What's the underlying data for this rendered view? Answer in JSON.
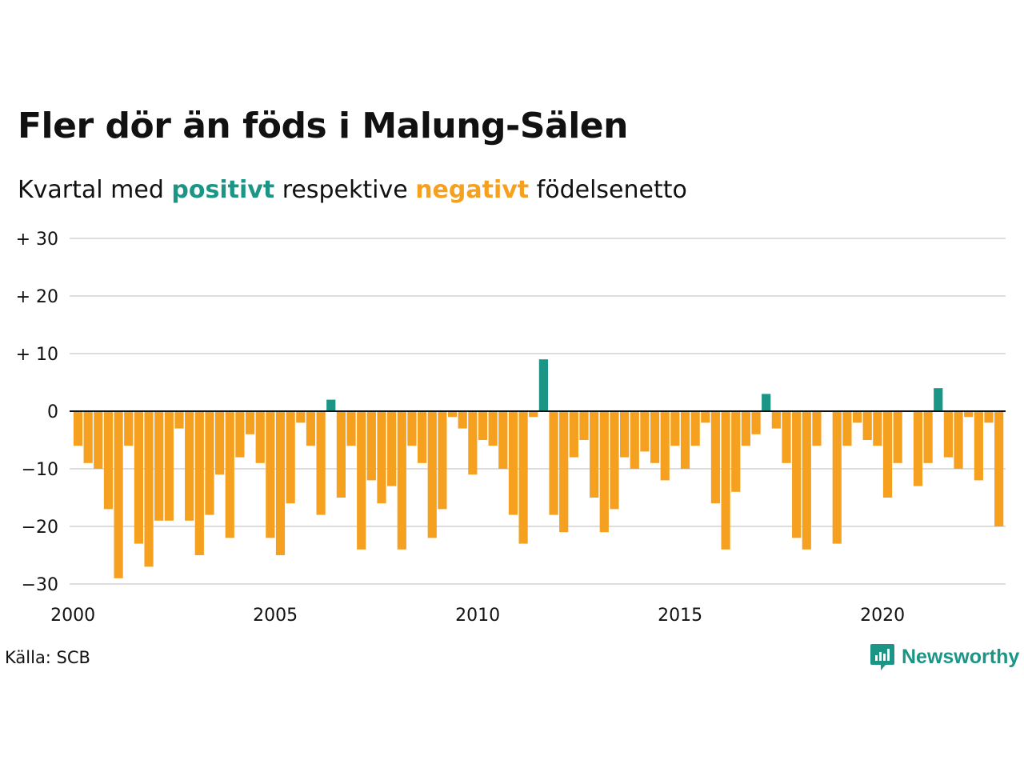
{
  "title": "Fler dör än föds i Malung-Sälen",
  "subtitle": {
    "prefix": "Kvartal med ",
    "positive_word": "positivt",
    "middle": " respektive ",
    "negative_word": "negativt",
    "suffix": " födelsenetto"
  },
  "source": "Källa: SCB",
  "logo": {
    "text": "Newsworthy",
    "icon": "newsworthy-logo-icon"
  },
  "colors": {
    "positive": "#1a9586",
    "negative": "#f5a01f",
    "grid": "#dddddd"
  },
  "chart_data": {
    "type": "bar",
    "x_start": "2000 Q1",
    "x_ticks": [
      "2000",
      "2005",
      "2010",
      "2015",
      "2020"
    ],
    "ylim": [
      -30,
      30
    ],
    "y_ticks": [
      {
        "value": 30,
        "label": "+ 30"
      },
      {
        "value": 20,
        "label": "+ 20"
      },
      {
        "value": 10,
        "label": "+ 10"
      },
      {
        "value": 0,
        "label": "0"
      },
      {
        "value": -10,
        "label": "−10"
      },
      {
        "value": -20,
        "label": "−20"
      },
      {
        "value": -30,
        "label": "−30"
      }
    ],
    "grid": true,
    "values": [
      -6,
      -9,
      -10,
      -17,
      -29,
      -6,
      -23,
      -27,
      -19,
      -19,
      -3,
      -19,
      -25,
      -18,
      -11,
      -22,
      -8,
      -4,
      -9,
      -22,
      -25,
      -16,
      -2,
      -6,
      -18,
      2,
      -15,
      -6,
      -24,
      -12,
      -16,
      -13,
      -24,
      -6,
      -9,
      -22,
      -17,
      -1,
      -3,
      -11,
      -5,
      -6,
      -10,
      -18,
      -23,
      -1,
      9,
      -18,
      -21,
      -8,
      -5,
      -15,
      -21,
      -17,
      -8,
      -10,
      -7,
      -9,
      -12,
      -6,
      -10,
      -6,
      -2,
      -16,
      -24,
      -14,
      -6,
      -4,
      3,
      -3,
      -9,
      -22,
      -24,
      -6,
      0,
      -23,
      -6,
      -2,
      -5,
      -6,
      -15,
      -9,
      0,
      -13,
      -9,
      4,
      -8,
      -10,
      -1,
      -12,
      -2,
      -20
    ]
  }
}
